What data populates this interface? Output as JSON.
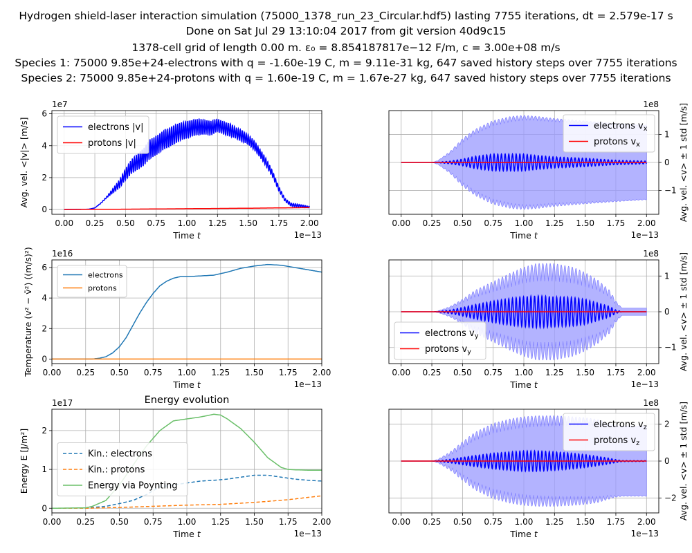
{
  "figure": {
    "title_lines": [
      "Hydrogen shield-laser interaction simulation (75000_1378_run_23_Circular.hdf5) lasting 7755 iterations, dt = 2.579e-17 s",
      "Done on Sat Jul 29 13:10:04 2017 from git version 40d9c15",
      "1378-cell grid of length 0.00 m. ε₀ = 8.854187817e−12 F/m, c = 3.00e+08 m/s",
      "Species 1: 75000 9.85e+24-electrons with q = -1.60e-19 C, m = 9.11e-31 kg, 647 saved history steps over 7755 iterations",
      "Species 2: 75000 9.85e+24-protons with q = 1.60e-19 C, m = 1.67e-27 kg, 647 saved history steps over 7755 iterations"
    ]
  },
  "colors": {
    "electrons_v": "#0000ff",
    "protons_v": "#ff0000",
    "std_band": "#9999ff",
    "tab_blue": "#1f77b4",
    "tab_orange": "#ff7f0e",
    "tab_green": "#6abf69",
    "grid": "#b0b0b0"
  },
  "chart_data": [
    {
      "id": "avg_abs_velocity",
      "type": "line",
      "title": "",
      "xlabel": "Time t",
      "ylabel": "Avg. vel. <|v|> [m/s]",
      "x_offset_text": "1e−13",
      "y_offset_text": "1e7",
      "xlim": [
        -0.1,
        2.1
      ],
      "ylim": [
        -0.3,
        6.2
      ],
      "xticks": [
        0.0,
        0.25,
        0.5,
        0.75,
        1.0,
        1.25,
        1.5,
        1.75,
        2.0
      ],
      "xtick_labels": [
        "0.00",
        "0.25",
        "0.50",
        "0.75",
        "1.00",
        "1.25",
        "1.50",
        "1.75",
        "2.00"
      ],
      "yticks": [
        0,
        2,
        4,
        6
      ],
      "ytick_labels": [
        "0",
        "2",
        "4",
        "6"
      ],
      "y_axis_side": "left",
      "grid": true,
      "legend_position": "upper-left",
      "series": [
        {
          "name": "electrons |v|",
          "color": "#0000ff",
          "style": "solid",
          "x": [
            0.0,
            0.2,
            0.25,
            0.3,
            0.35,
            0.4,
            0.45,
            0.5,
            0.55,
            0.6,
            0.65,
            0.7,
            0.75,
            0.8,
            0.85,
            0.9,
            0.95,
            1.0,
            1.05,
            1.1,
            1.15,
            1.2,
            1.25,
            1.3,
            1.35,
            1.4,
            1.45,
            1.5,
            1.55,
            1.6,
            1.65,
            1.7,
            1.75,
            1.8,
            1.85,
            1.9,
            1.95,
            2.0
          ],
          "y": [
            0.0,
            0.02,
            0.1,
            0.4,
            0.8,
            1.2,
            1.6,
            2.2,
            2.7,
            3.0,
            3.3,
            3.8,
            4.0,
            4.3,
            4.5,
            4.7,
            4.9,
            5.0,
            5.1,
            5.2,
            5.15,
            5.1,
            5.3,
            5.1,
            5.0,
            4.8,
            4.6,
            4.4,
            4.0,
            3.5,
            2.9,
            2.2,
            1.3,
            0.6,
            0.3,
            0.25,
            0.2,
            0.15
          ],
          "oscillation": {
            "amplitude": [
              0,
              0,
              0,
              0.05,
              0.1,
              0.3,
              0.5,
              0.7,
              0.9,
              1.0,
              1.1,
              1.2,
              1.2,
              1.2,
              1.2,
              1.2,
              1.1,
              1.1,
              1.0,
              1.0,
              0.9,
              0.9,
              0.8,
              0.8,
              0.8,
              0.7,
              0.7,
              0.6,
              0.6,
              0.5,
              0.5,
              0.4,
              0.3,
              0.2,
              0.2,
              0.2,
              0.15,
              0.1
            ],
            "period": 0.016
          }
        },
        {
          "name": "protons |v|",
          "color": "#ff0000",
          "style": "solid",
          "x": [
            0.0,
            0.5,
            1.0,
            1.5,
            2.0
          ],
          "y": [
            0.0,
            0.02,
            0.05,
            0.08,
            0.12
          ]
        }
      ]
    },
    {
      "id": "vx",
      "type": "area",
      "title": "",
      "xlabel": "Time t",
      "ylabel": "Avg. vel. <v> ± 1 std [m/s]",
      "x_offset_text": "1e−13",
      "y_offset_text": "1e8",
      "xlim": [
        -0.1,
        2.1
      ],
      "ylim": [
        -1.85,
        1.85
      ],
      "xticks": [
        0.0,
        0.25,
        0.5,
        0.75,
        1.0,
        1.25,
        1.5,
        1.75,
        2.0
      ],
      "xtick_labels": [
        "0.00",
        "0.25",
        "0.50",
        "0.75",
        "1.00",
        "1.25",
        "1.50",
        "1.75",
        "2.00"
      ],
      "yticks": [
        -1,
        0,
        1
      ],
      "ytick_labels": [
        "−1",
        "0",
        "1"
      ],
      "y_axis_side": "right",
      "grid": true,
      "legend_position": "upper-right",
      "band": {
        "x": [
          0.0,
          0.25,
          0.3,
          0.4,
          0.5,
          0.6,
          0.75,
          0.9,
          1.0,
          1.1,
          1.25,
          1.5,
          1.75,
          2.0
        ],
        "std": [
          0.0,
          0.0,
          0.05,
          0.3,
          0.7,
          1.0,
          1.3,
          1.45,
          1.5,
          1.5,
          1.45,
          1.4,
          1.35,
          1.3
        ],
        "peak_extra": [
          0.0,
          0.0,
          0.02,
          0.1,
          0.15,
          0.18,
          0.2,
          0.2,
          0.18,
          0.15,
          0.12,
          0.08,
          0.05,
          0.03
        ]
      },
      "series": [
        {
          "name": "electrons v_x",
          "label_main": "electrons v",
          "label_sub": "x",
          "color": "#0000ff",
          "x": [
            0.0,
            0.25,
            0.3,
            0.4,
            0.5,
            0.6,
            0.75,
            0.9,
            1.0,
            1.1,
            1.25,
            1.5,
            1.75,
            2.0
          ],
          "amplitude": [
            0.0,
            0.0,
            0.01,
            0.05,
            0.12,
            0.22,
            0.3,
            0.3,
            0.3,
            0.25,
            0.2,
            0.15,
            0.08,
            0.05
          ],
          "period": 0.03
        },
        {
          "name": "protons v_x",
          "label_main": "protons v",
          "label_sub": "x",
          "color": "#ff0000",
          "x": [
            0.0,
            2.0
          ],
          "y": [
            0.0,
            0.0
          ]
        }
      ]
    },
    {
      "id": "temperature",
      "type": "line",
      "title": "",
      "xlabel": "Time t",
      "ylabel": "Temperature (v² − v̄²) ((m/s)²)",
      "x_offset_text": "1e−13",
      "y_offset_text": "1e16",
      "xlim": [
        0.0,
        2.0
      ],
      "ylim": [
        -0.3,
        6.5
      ],
      "xticks": [
        0.0,
        0.25,
        0.5,
        0.75,
        1.0,
        1.25,
        1.5,
        1.75,
        2.0
      ],
      "xtick_labels": [
        "0.00",
        "0.25",
        "0.50",
        "0.75",
        "1.00",
        "1.25",
        "1.50",
        "1.75",
        "2.00"
      ],
      "yticks": [
        0,
        2,
        4,
        6
      ],
      "ytick_labels": [
        "0",
        "2",
        "4",
        "6"
      ],
      "y_axis_side": "left",
      "grid": true,
      "legend_position": "upper-left",
      "series": [
        {
          "name": "electrons",
          "color": "#1f77b4",
          "style": "solid",
          "x": [
            0.0,
            0.3,
            0.35,
            0.4,
            0.45,
            0.5,
            0.55,
            0.6,
            0.65,
            0.7,
            0.75,
            0.8,
            0.85,
            0.9,
            0.95,
            1.0,
            1.1,
            1.2,
            1.3,
            1.4,
            1.5,
            1.6,
            1.7,
            1.8,
            1.9,
            2.0
          ],
          "y": [
            0.0,
            0.0,
            0.05,
            0.15,
            0.4,
            0.8,
            1.4,
            2.2,
            3.0,
            3.7,
            4.3,
            4.8,
            5.1,
            5.3,
            5.4,
            5.4,
            5.45,
            5.5,
            5.7,
            5.95,
            6.1,
            6.2,
            6.15,
            6.0,
            5.85,
            5.7
          ]
        },
        {
          "name": "protons",
          "color": "#ff7f0e",
          "style": "solid",
          "x": [
            0.0,
            2.0
          ],
          "y": [
            0.0,
            0.0
          ]
        }
      ]
    },
    {
      "id": "vy",
      "type": "area",
      "title": "",
      "xlabel": "Time t",
      "ylabel": "Avg. vel. <v> ± 1 std [m/s]",
      "x_offset_text": "1e−13",
      "y_offset_text": "1e8",
      "xlim": [
        -0.1,
        2.1
      ],
      "ylim": [
        -1.45,
        1.45
      ],
      "xticks": [
        0.0,
        0.25,
        0.5,
        0.75,
        1.0,
        1.25,
        1.5,
        1.75,
        2.0
      ],
      "xtick_labels": [
        "0.00",
        "0.25",
        "0.50",
        "0.75",
        "1.00",
        "1.25",
        "1.50",
        "1.75",
        "2.00"
      ],
      "yticks": [
        -1,
        0,
        1
      ],
      "ytick_labels": [
        "−1",
        "0",
        "1"
      ],
      "y_axis_side": "right",
      "grid": true,
      "legend_position": "lower-left",
      "band": {
        "x": [
          0.0,
          0.25,
          0.3,
          0.4,
          0.5,
          0.6,
          0.75,
          0.9,
          1.0,
          1.1,
          1.25,
          1.4,
          1.5,
          1.6,
          1.7,
          1.75,
          1.8,
          2.0
        ],
        "std": [
          0.0,
          0.0,
          0.02,
          0.1,
          0.25,
          0.4,
          0.55,
          0.7,
          0.8,
          0.85,
          0.85,
          0.8,
          0.7,
          0.6,
          0.4,
          0.2,
          0.1,
          0.1
        ],
        "peak_extra": [
          0.0,
          0.0,
          0.0,
          0.05,
          0.1,
          0.2,
          0.3,
          0.4,
          0.45,
          0.5,
          0.5,
          0.45,
          0.4,
          0.3,
          0.2,
          0.1,
          0.0,
          0.0
        ]
      },
      "series": [
        {
          "name": "electrons v_y",
          "label_main": "electrons v",
          "label_sub": "y",
          "color": "#0000ff",
          "x": [
            0.0,
            0.25,
            0.3,
            0.4,
            0.5,
            0.6,
            0.75,
            0.9,
            1.0,
            1.1,
            1.25,
            1.4,
            1.5,
            1.6,
            1.7,
            1.75,
            1.8,
            2.0
          ],
          "amplitude": [
            0.0,
            0.0,
            0.01,
            0.05,
            0.12,
            0.2,
            0.3,
            0.38,
            0.42,
            0.45,
            0.42,
            0.4,
            0.35,
            0.25,
            0.15,
            0.05,
            0.0,
            0.0
          ],
          "period": 0.03
        },
        {
          "name": "protons v_y",
          "label_main": "protons v",
          "label_sub": "y",
          "color": "#ff0000",
          "x": [
            0.0,
            2.0
          ],
          "y": [
            0.0,
            0.0
          ]
        }
      ]
    },
    {
      "id": "energy",
      "type": "line",
      "title": "Energy evolution",
      "xlabel": "Time t",
      "ylabel": "Energy E [J/m²]",
      "x_offset_text": "1e−13",
      "y_offset_text": "1e17",
      "xlim": [
        0.0,
        2.0
      ],
      "ylim": [
        -0.12,
        2.55
      ],
      "xticks": [
        0.0,
        0.25,
        0.5,
        0.75,
        1.0,
        1.25,
        1.5,
        1.75,
        2.0
      ],
      "xtick_labels": [
        "0.00",
        "0.25",
        "0.50",
        "0.75",
        "1.00",
        "1.25",
        "1.50",
        "1.75",
        "2.00"
      ],
      "yticks": [
        0,
        1,
        2
      ],
      "ytick_labels": [
        "0",
        "1",
        "2"
      ],
      "y_axis_side": "left",
      "grid": true,
      "legend_position": "center-left",
      "series": [
        {
          "name": "Kin.: electrons",
          "color": "#1f77b4",
          "style": "dashed",
          "x": [
            0.0,
            0.25,
            0.3,
            0.4,
            0.5,
            0.6,
            0.7,
            0.75,
            0.8,
            0.9,
            1.0,
            1.1,
            1.2,
            1.3,
            1.4,
            1.5,
            1.6,
            1.7,
            1.8,
            1.9,
            2.0
          ],
          "y": [
            0.0,
            0.0,
            0.02,
            0.05,
            0.12,
            0.2,
            0.35,
            0.45,
            0.55,
            0.6,
            0.65,
            0.7,
            0.72,
            0.75,
            0.8,
            0.85,
            0.85,
            0.8,
            0.75,
            0.72,
            0.7
          ]
        },
        {
          "name": "Kin.: protons",
          "color": "#ff7f0e",
          "style": "dashed",
          "x": [
            0.0,
            0.25,
            0.5,
            0.75,
            1.0,
            1.25,
            1.5,
            1.75,
            2.0
          ],
          "y": [
            0.0,
            0.0,
            0.02,
            0.05,
            0.08,
            0.1,
            0.15,
            0.22,
            0.32
          ]
        },
        {
          "name": "Energy via Poynting",
          "color": "#6abf69",
          "style": "solid",
          "x": [
            0.0,
            0.25,
            0.3,
            0.4,
            0.5,
            0.6,
            0.7,
            0.8,
            0.9,
            1.0,
            1.1,
            1.2,
            1.25,
            1.3,
            1.4,
            1.5,
            1.6,
            1.7,
            1.75,
            1.8,
            1.9,
            2.0
          ],
          "y": [
            0.0,
            0.01,
            0.05,
            0.2,
            0.6,
            1.1,
            1.6,
            2.0,
            2.25,
            2.3,
            2.35,
            2.42,
            2.4,
            2.3,
            2.05,
            1.7,
            1.3,
            1.05,
            1.0,
            0.99,
            0.98,
            0.98
          ]
        }
      ]
    },
    {
      "id": "vz",
      "type": "area",
      "title": "",
      "xlabel": "Time t",
      "ylabel": "Avg. vel. <v> ± 1 std [m/s]",
      "x_offset_text": "1e−13",
      "y_offset_text": "1e8",
      "xlim": [
        -0.1,
        2.1
      ],
      "ylim": [
        -2.8,
        2.8
      ],
      "xticks": [
        0.0,
        0.25,
        0.5,
        0.75,
        1.0,
        1.25,
        1.5,
        1.75,
        2.0
      ],
      "xtick_labels": [
        "0.00",
        "0.25",
        "0.50",
        "0.75",
        "1.00",
        "1.25",
        "1.50",
        "1.75",
        "2.00"
      ],
      "yticks": [
        -2,
        0,
        2
      ],
      "ytick_labels": [
        "−2",
        "0",
        "2"
      ],
      "y_axis_side": "right",
      "grid": true,
      "legend_position": "upper-right",
      "band": {
        "x": [
          0.0,
          0.25,
          0.3,
          0.4,
          0.5,
          0.6,
          0.75,
          0.9,
          1.0,
          1.1,
          1.25,
          1.4,
          1.5,
          1.6,
          1.7,
          1.75,
          1.8,
          2.0
        ],
        "std": [
          0.0,
          0.0,
          0.05,
          0.3,
          0.7,
          1.1,
          1.5,
          1.7,
          1.8,
          1.85,
          1.9,
          1.9,
          1.9,
          1.9,
          1.85,
          1.85,
          1.85,
          1.85
        ],
        "peak_extra": [
          0.0,
          0.0,
          0.05,
          0.2,
          0.35,
          0.45,
          0.55,
          0.6,
          0.6,
          0.6,
          0.55,
          0.5,
          0.45,
          0.35,
          0.2,
          0.1,
          0.05,
          0.05
        ]
      },
      "series": [
        {
          "name": "electrons v_z",
          "label_main": "electrons v",
          "label_sub": "z",
          "color": "#0000ff",
          "x": [
            0.0,
            0.25,
            0.3,
            0.4,
            0.5,
            0.6,
            0.75,
            0.9,
            1.0,
            1.1,
            1.25,
            1.4,
            1.5,
            1.6,
            1.7,
            1.75,
            1.8,
            2.0
          ],
          "amplitude": [
            0.0,
            0.0,
            0.02,
            0.1,
            0.2,
            0.3,
            0.42,
            0.5,
            0.55,
            0.55,
            0.5,
            0.42,
            0.35,
            0.25,
            0.15,
            0.08,
            0.03,
            0.02
          ],
          "period": 0.03
        },
        {
          "name": "protons v_z",
          "label_main": "protons v",
          "label_sub": "z",
          "color": "#ff0000",
          "x": [
            0.0,
            2.0
          ],
          "y": [
            0.0,
            0.0
          ]
        }
      ]
    }
  ]
}
